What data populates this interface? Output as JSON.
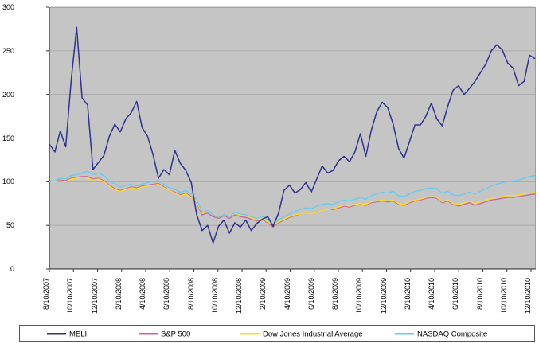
{
  "chart_data": {
    "type": "line",
    "title": "",
    "xlabel": "",
    "ylabel": "",
    "ylim": [
      0,
      300
    ],
    "y_ticks": [
      0,
      50,
      100,
      150,
      200,
      250,
      300
    ],
    "grid": true,
    "plot_bg_color": "#c5c5c5",
    "gridline_color": "#ababab",
    "axis_color": "#3a3a3a",
    "legend_position": "bottom",
    "x_tick_labels": [
      "8/10/2007",
      "10/10/2007",
      "12/10/2007",
      "2/10/2008",
      "4/10/2008",
      "6/10/2008",
      "8/10/2008",
      "10/10/2008",
      "12/10/2008",
      "2/10/2009",
      "4/10/2009",
      "6/10/2009",
      "8/10/2009",
      "10/10/2009",
      "12/10/2009",
      "2/10/2010",
      "4/10/2010",
      "6/10/2010",
      "8/10/2010",
      "10/10/2010",
      "12/10/2010"
    ],
    "x_note": "weekly data indexed near 100, estimated at 2-week intervals spanning 8/10/2007 to end of 12/2010",
    "series": [
      {
        "name": "MELI",
        "color": "#31318f",
        "values": [
          143,
          134,
          158,
          140,
          216,
          277,
          196,
          188,
          114,
          122,
          130,
          152,
          166,
          157,
          172,
          179,
          192,
          162,
          152,
          131,
          104,
          114,
          108,
          136,
          121,
          113,
          99,
          62,
          44,
          50,
          30,
          49,
          56,
          41,
          53,
          48,
          56,
          44,
          52,
          57,
          60,
          49,
          64,
          90,
          96,
          87,
          91,
          99,
          88,
          103,
          118,
          110,
          113,
          124,
          129,
          123,
          134,
          155,
          129,
          159,
          180,
          191,
          185,
          166,
          138,
          127,
          146,
          165,
          165,
          175,
          190,
          172,
          164,
          186,
          205,
          210,
          200,
          207,
          215,
          225,
          235,
          250,
          257,
          251,
          236,
          230,
          210,
          215,
          245,
          241
        ]
      },
      {
        "name": "S&P 500",
        "color": "#cc6699",
        "values": [
          100,
          100,
          102,
          101,
          104,
          105,
          106,
          106,
          103,
          104,
          101,
          96,
          92,
          90,
          92,
          94,
          93,
          95,
          96,
          97,
          98,
          94,
          90,
          88,
          85,
          87,
          83,
          76,
          62,
          64,
          60,
          58,
          61,
          58,
          62,
          60,
          59,
          57,
          55,
          57,
          53,
          48,
          53,
          56,
          59,
          61,
          63,
          64,
          63,
          65,
          67,
          68,
          68,
          70,
          72,
          71,
          73,
          74,
          73,
          76,
          77,
          78,
          77,
          78,
          74,
          73,
          76,
          78,
          79,
          81,
          82,
          81,
          76,
          78,
          74,
          72,
          74,
          76,
          73,
          75,
          77,
          79,
          80,
          81,
          82,
          82,
          83,
          84,
          85,
          86
        ]
      },
      {
        "name": "Dow Jones Industrial Average",
        "color": "#ffdd22",
        "values": [
          100,
          100,
          101,
          100,
          103,
          104,
          105,
          104,
          102,
          103,
          100,
          95,
          91,
          89,
          91,
          93,
          92,
          94,
          95,
          96,
          97,
          93,
          90,
          87,
          84,
          86,
          82,
          77,
          64,
          66,
          62,
          60,
          63,
          60,
          64,
          62,
          61,
          59,
          56,
          58,
          54,
          50,
          54,
          57,
          60,
          62,
          63,
          64,
          63,
          65,
          67,
          68,
          69,
          71,
          73,
          72,
          74,
          75,
          74,
          77,
          78,
          79,
          78,
          79,
          75,
          74,
          77,
          79,
          80,
          82,
          83,
          82,
          77,
          79,
          75,
          74,
          76,
          78,
          75,
          77,
          79,
          81,
          82,
          83,
          84,
          84,
          85,
          86,
          87,
          88
        ]
      },
      {
        "name": "NASDAQ Composite",
        "color": "#66ccee",
        "values": [
          100,
          101,
          104,
          103,
          107,
          108,
          110,
          112,
          108,
          110,
          107,
          100,
          98,
          94,
          96,
          97,
          95,
          97,
          99,
          100,
          101,
          97,
          93,
          91,
          88,
          90,
          86,
          80,
          65,
          67,
          62,
          59,
          63,
          60,
          65,
          63,
          62,
          60,
          58,
          60,
          57,
          51,
          56,
          60,
          63,
          66,
          68,
          70,
          69,
          72,
          74,
          75,
          74,
          77,
          79,
          78,
          80,
          82,
          80,
          84,
          86,
          88,
          87,
          89,
          84,
          83,
          86,
          89,
          90,
          92,
          93,
          92,
          87,
          89,
          85,
          84,
          86,
          88,
          86,
          89,
          92,
          95,
          97,
          99,
          100,
          101,
          102,
          104,
          106,
          107
        ]
      }
    ]
  }
}
